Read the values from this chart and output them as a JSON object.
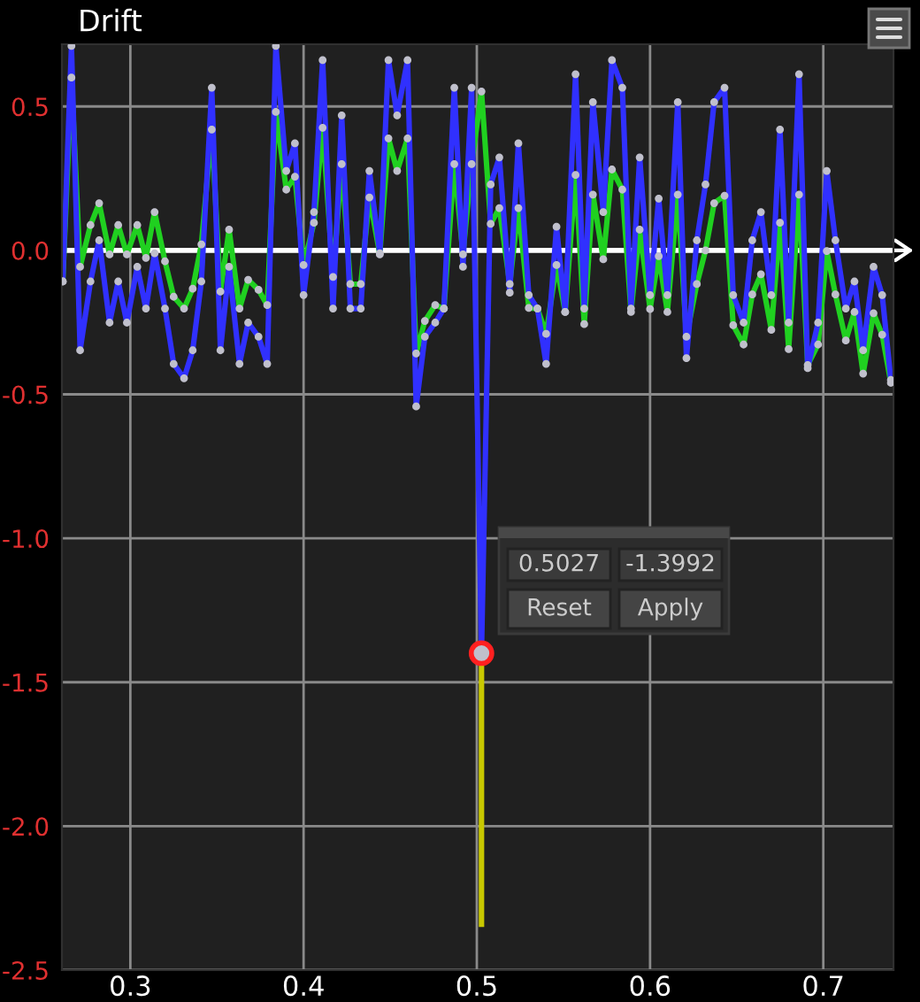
{
  "chart_data": {
    "type": "line",
    "title": "Drift",
    "x": [
      0.261,
      0.266,
      0.271,
      0.277,
      0.282,
      0.288,
      0.293,
      0.298,
      0.304,
      0.309,
      0.314,
      0.32,
      0.325,
      0.331,
      0.336,
      0.341,
      0.347,
      0.352,
      0.357,
      0.363,
      0.368,
      0.374,
      0.379,
      0.384,
      0.39,
      0.395,
      0.4,
      0.406,
      0.411,
      0.417,
      0.422,
      0.427,
      0.433,
      0.438,
      0.444,
      0.449,
      0.454,
      0.46,
      0.465,
      0.47,
      0.476,
      0.481,
      0.487,
      0.492,
      0.497,
      0.5027,
      0.508,
      0.513,
      0.519,
      0.524,
      0.53,
      0.535,
      0.54,
      0.546,
      0.551,
      0.557,
      0.562,
      0.567,
      0.573,
      0.578,
      0.584,
      0.589,
      0.594,
      0.6,
      0.605,
      0.61,
      0.616,
      0.621,
      0.627,
      0.632,
      0.637,
      0.643,
      0.648,
      0.654,
      0.659,
      0.664,
      0.67,
      0.675,
      0.68,
      0.686,
      0.691,
      0.697,
      0.702,
      0.707,
      0.713,
      0.718,
      0.723,
      0.729,
      0.734,
      0.739
    ],
    "series": [
      {
        "color": "#20d020",
        "values": [
          -0.108,
          0.6,
          -0.057,
          0.088,
          0.164,
          -0.014,
          0.088,
          -0.014,
          0.088,
          -0.026,
          0.133,
          -0.038,
          -0.161,
          -0.202,
          -0.133,
          0.021,
          0.42,
          -0.143,
          0.072,
          -0.202,
          -0.102,
          -0.137,
          -0.19,
          0.481,
          0.211,
          0.256,
          -0.051,
          0.096,
          0.426,
          -0.092,
          0.3,
          -0.117,
          -0.117,
          0.184,
          -0.014,
          0.389,
          0.276,
          0.389,
          -0.358,
          -0.245,
          -0.19,
          -0.202,
          0.3,
          -0.014,
          0.3,
          0.552,
          0.092,
          0.147,
          -0.117,
          0.147,
          -0.2,
          -0.202,
          -0.29,
          -0.051,
          -0.214,
          0.262,
          -0.256,
          0.194,
          -0.031,
          0.281,
          0.211,
          -0.214,
          0.072,
          -0.204,
          -0.02,
          -0.214,
          0.194,
          -0.3,
          -0.117,
          0.0,
          0.164,
          0.19,
          -0.26,
          -0.327,
          -0.153,
          -0.083,
          -0.276,
          0.096,
          -0.343,
          0.194,
          -0.398,
          -0.327,
          -0.002,
          -0.153,
          -0.313,
          -0.214,
          -0.428,
          -0.218,
          -0.293,
          -0.46
        ]
      },
      {
        "color": "#3030ff",
        "values": [
          -0.108,
          0.71,
          -0.347,
          -0.108,
          0.035,
          -0.251,
          -0.108,
          -0.251,
          -0.057,
          -0.202,
          -0.01,
          -0.202,
          -0.394,
          -0.444,
          -0.347,
          -0.108,
          0.565,
          -0.347,
          -0.057,
          -0.394,
          -0.251,
          -0.3,
          -0.394,
          0.71,
          0.276,
          0.372,
          -0.155,
          0.133,
          0.661,
          -0.202,
          0.469,
          -0.202,
          -0.202,
          0.276,
          -0.01,
          0.661,
          0.469,
          0.661,
          -0.542,
          -0.3,
          -0.251,
          -0.202,
          0.565,
          -0.057,
          0.565,
          -1.3992,
          0.229,
          0.323,
          -0.147,
          0.372,
          -0.155,
          -0.202,
          -0.394,
          0.082,
          -0.214,
          0.612,
          -0.202,
          0.515,
          0.133,
          0.661,
          0.565,
          -0.202,
          0.323,
          -0.155,
          0.18,
          -0.155,
          0.515,
          -0.374,
          0.035,
          0.229,
          0.515,
          0.565,
          -0.155,
          -0.251,
          0.035,
          0.133,
          -0.155,
          0.42,
          -0.251,
          0.612,
          -0.409,
          -0.251,
          0.276,
          0.035,
          -0.202,
          -0.108,
          -0.347,
          -0.057,
          -0.155,
          -0.45
        ]
      },
      {
        "type": "scatter",
        "color": "#ff2020",
        "values": [
          null,
          null,
          null,
          null,
          null,
          null,
          null,
          null,
          null,
          null,
          null,
          null,
          null,
          null,
          null,
          null,
          null,
          null,
          null,
          null,
          null,
          null,
          null,
          null,
          null,
          null,
          null,
          null,
          null,
          null,
          null,
          null,
          null,
          null,
          null,
          null,
          null,
          null,
          null,
          null,
          null,
          null,
          null,
          null,
          null,
          -1.3992,
          null,
          null,
          null,
          null,
          null,
          null,
          null,
          null,
          null,
          null,
          null,
          null,
          null,
          null,
          null,
          null,
          null,
          null,
          null,
          null,
          null,
          null,
          null,
          null,
          null,
          null,
          null,
          null,
          null,
          null,
          null,
          null,
          null,
          null,
          null,
          null,
          null,
          null,
          null,
          null,
          null,
          null,
          null,
          null
        ],
        "errors": [
          null,
          null,
          null,
          null,
          null,
          null,
          null,
          null,
          null,
          null,
          null,
          null,
          null,
          null,
          null,
          null,
          null,
          null,
          null,
          null,
          null,
          null,
          null,
          null,
          null,
          null,
          null,
          null,
          null,
          null,
          null,
          null,
          null,
          null,
          null,
          null,
          null,
          null,
          null,
          null,
          null,
          null,
          null,
          null,
          null,
          [
            -2.35,
            -1.3992
          ],
          null,
          null,
          null,
          null,
          null,
          null,
          null,
          null,
          null,
          null,
          null,
          null,
          null,
          null,
          null,
          null,
          null,
          null,
          null,
          null,
          null,
          null,
          null,
          null,
          null,
          null,
          null,
          null,
          null,
          null,
          null,
          null,
          null,
          null,
          null,
          null,
          null,
          null,
          null,
          null,
          null,
          null,
          null,
          null
        ]
      }
    ],
    "xlim": [
      0.2605,
      0.7405
    ],
    "ylim": [
      -2.5,
      0.716
    ],
    "xticks": [
      0.3,
      0.4,
      0.5,
      0.6,
      0.7
    ],
    "yticks": [
      {
        "value": -2.5,
        "label": "-2.5"
      },
      {
        "value": -2,
        "label": "-2.0"
      },
      {
        "value": -1.5,
        "label": "-1.5"
      },
      {
        "value": -1,
        "label": "-1.0"
      },
      {
        "value": -0.5,
        "label": "-0.5"
      },
      {
        "value": 0,
        "label": "0.0"
      },
      {
        "value": 0.5,
        "label": "0.5"
      }
    ],
    "grid": true,
    "marker": "circle",
    "ref_lines": [
      {
        "axis": "y",
        "value": 0,
        "color": "#ffffff"
      }
    ],
    "annotations": [
      "0.5027",
      "-1.3992",
      "Reset",
      "Apply"
    ]
  }
}
